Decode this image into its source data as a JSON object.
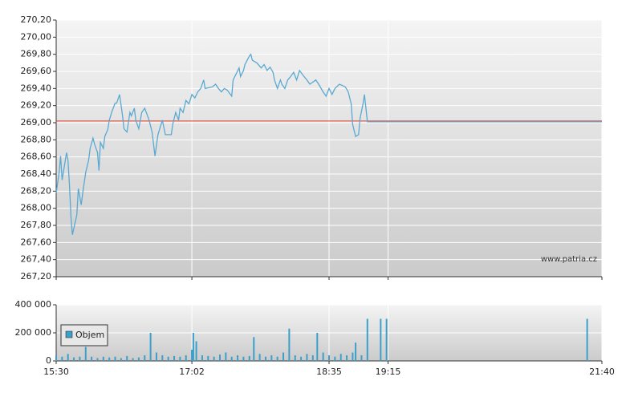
{
  "chart_data": [
    {
      "type": "line",
      "annotation": "www.patria.cz",
      "xlim": [
        930,
        1300
      ],
      "ylim": [
        267.2,
        270.2
      ],
      "yticks": [
        {
          "value": 267.2,
          "label": "267,20"
        },
        {
          "value": 267.4,
          "label": "267,40"
        },
        {
          "value": 267.6,
          "label": "267,60"
        },
        {
          "value": 267.8,
          "label": "267,80"
        },
        {
          "value": 268.0,
          "label": "268,00"
        },
        {
          "value": 268.2,
          "label": "268,20"
        },
        {
          "value": 268.4,
          "label": "268,40"
        },
        {
          "value": 268.6,
          "label": "268,60"
        },
        {
          "value": 268.8,
          "label": "268,80"
        },
        {
          "value": 269.0,
          "label": "269,00"
        },
        {
          "value": 269.2,
          "label": "269,20"
        },
        {
          "value": 269.4,
          "label": "269,40"
        },
        {
          "value": 269.6,
          "label": "269,60"
        },
        {
          "value": 269.8,
          "label": "269,80"
        },
        {
          "value": 270.0,
          "label": "270,00"
        },
        {
          "value": 270.2,
          "label": "270,20"
        }
      ],
      "grid": true,
      "reference_line": {
        "value": 269.02,
        "color": "#e03a2a"
      },
      "series": [
        {
          "color": "#5aa9d2",
          "x": [
            930,
            932,
            933,
            934,
            937,
            938,
            939,
            940,
            941,
            944,
            945,
            947,
            948,
            950,
            952,
            953,
            955,
            956,
            958,
            959,
            960,
            962,
            963,
            965,
            966,
            968,
            970,
            971,
            973,
            975,
            976,
            978,
            980,
            981,
            983,
            984,
            986,
            988,
            990,
            993,
            995,
            996,
            997,
            999,
            1002,
            1004,
            1008,
            1009,
            1011,
            1013,
            1014,
            1016,
            1018,
            1020,
            1022,
            1024,
            1026,
            1028,
            1030,
            1031,
            1036,
            1038,
            1040,
            1042,
            1044,
            1046,
            1049,
            1050,
            1052,
            1054,
            1055,
            1057,
            1058,
            1061,
            1062,
            1063,
            1066,
            1069,
            1071,
            1073,
            1075,
            1077,
            1078,
            1080,
            1082,
            1083,
            1085,
            1087,
            1089,
            1091,
            1093,
            1095,
            1098,
            1100,
            1102,
            1106,
            1108,
            1111,
            1113,
            1115,
            1117,
            1119,
            1122,
            1126,
            1128,
            1130,
            1131,
            1133,
            1135,
            1136,
            1138,
            1139,
            1141,
            1300
          ],
          "values": [
            268.18,
            268.42,
            268.61,
            268.33,
            268.65,
            268.56,
            268.28,
            267.9,
            267.69,
            267.92,
            268.23,
            268.04,
            268.18,
            268.42,
            268.56,
            268.7,
            268.82,
            268.75,
            268.65,
            268.44,
            268.77,
            268.7,
            268.84,
            268.92,
            269.03,
            269.14,
            269.23,
            269.23,
            269.33,
            269.08,
            268.93,
            268.89,
            269.12,
            269.08,
            269.17,
            269.03,
            268.93,
            269.12,
            269.17,
            269.03,
            268.89,
            268.75,
            268.61,
            268.86,
            269.03,
            268.86,
            268.86,
            268.98,
            269.12,
            269.03,
            269.17,
            269.12,
            269.26,
            269.22,
            269.33,
            269.29,
            269.36,
            269.4,
            269.5,
            269.4,
            269.42,
            269.45,
            269.4,
            269.36,
            269.4,
            269.38,
            269.31,
            269.5,
            269.57,
            269.64,
            269.54,
            269.61,
            269.68,
            269.78,
            269.8,
            269.73,
            269.7,
            269.64,
            269.68,
            269.61,
            269.65,
            269.59,
            269.5,
            269.4,
            269.5,
            269.45,
            269.4,
            269.5,
            269.54,
            269.59,
            269.5,
            269.61,
            269.54,
            269.5,
            269.45,
            269.5,
            269.45,
            269.36,
            269.31,
            269.4,
            269.33,
            269.4,
            269.45,
            269.42,
            269.36,
            269.22,
            268.98,
            268.84,
            268.86,
            269.05,
            269.22,
            269.33,
            269.01,
            269.01
          ]
        }
      ]
    },
    {
      "type": "bar",
      "xlim": [
        930,
        1300
      ],
      "xticks": [
        {
          "value": 930,
          "label": "15:30"
        },
        {
          "value": 1022,
          "label": "17:02"
        },
        {
          "value": 1115,
          "label": "18:35"
        },
        {
          "value": 1155,
          "label": "19:15"
        },
        {
          "value": 1300,
          "label": "21:40"
        }
      ],
      "ylim": [
        0,
        400000
      ],
      "yticks": [
        0,
        {
          "value": 200000,
          "label": "200 000"
        },
        {
          "value": 400000,
          "label": "400 000"
        }
      ],
      "grid": true,
      "legend": "upper left",
      "series": [
        {
          "name": "Objem",
          "color": "#3c9fcb",
          "x": [
            930,
            934,
            938,
            942,
            946,
            950,
            954,
            958,
            962,
            966,
            970,
            974,
            978,
            982,
            986,
            990,
            994,
            998,
            1002,
            1006,
            1010,
            1014,
            1018,
            1022,
            1023,
            1025,
            1029,
            1033,
            1037,
            1041,
            1045,
            1049,
            1053,
            1057,
            1061,
            1064,
            1068,
            1072,
            1076,
            1080,
            1084,
            1088,
            1092,
            1096,
            1100,
            1104,
            1107,
            1111,
            1115,
            1119,
            1123,
            1127,
            1131,
            1133,
            1137,
            1141,
            1150,
            1154,
            1290
          ],
          "values": [
            40000,
            30000,
            50000,
            25000,
            30000,
            100000,
            30000,
            20000,
            30000,
            25000,
            30000,
            20000,
            35000,
            20000,
            25000,
            40000,
            200000,
            60000,
            40000,
            30000,
            35000,
            30000,
            40000,
            80000,
            200000,
            140000,
            40000,
            35000,
            30000,
            45000,
            60000,
            30000,
            40000,
            30000,
            35000,
            170000,
            50000,
            30000,
            40000,
            30000,
            60000,
            230000,
            40000,
            30000,
            50000,
            40000,
            200000,
            60000,
            40000,
            30000,
            50000,
            40000,
            60000,
            130000,
            40000,
            300000,
            300000,
            300000,
            300000
          ]
        }
      ]
    }
  ]
}
